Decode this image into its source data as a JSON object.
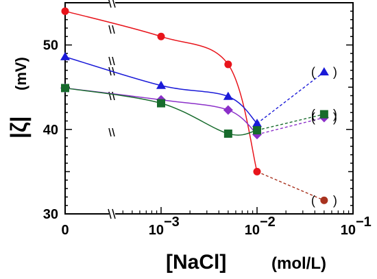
{
  "chart_data": {
    "type": "line",
    "title": "",
    "xlabel": "[NaCl]",
    "xlabel_unit": "(mol/L)",
    "ylabel": "|ζ|",
    "ylabel_unit": "(mV)",
    "x_scale": "log with broken axis (0 plotted left of break)",
    "ylim": [
      30,
      55
    ],
    "y_ticks": [
      30,
      40,
      50
    ],
    "x_tick_labels": [
      {
        "value": 0,
        "label": "0"
      },
      {
        "value": 0.001,
        "label": "10",
        "exp": "−3"
      },
      {
        "value": 0.01,
        "label": "10",
        "exp": "−2"
      },
      {
        "value": 0.1,
        "label": "10",
        "exp": "−1"
      }
    ],
    "grid": false,
    "legend": "none",
    "series": [
      {
        "marker": "circle",
        "color": "#e8141b",
        "x": [
          0,
          0.001,
          0.005,
          0.01
        ],
        "values": [
          54.0,
          51.0,
          47.7,
          35.0
        ],
        "extra_x": [
          0.05
        ],
        "extra_values": [
          31.6
        ],
        "extra_color": "#a8321e",
        "extra_label": "( )"
      },
      {
        "marker": "triangle",
        "color": "#1a1ad8",
        "x": [
          0,
          0.001,
          0.005,
          0.01
        ],
        "values": [
          48.6,
          45.2,
          43.9,
          40.7
        ],
        "extra_x": [
          0.05
        ],
        "extra_values": [
          46.8
        ],
        "extra_color": "#1a1ad8",
        "extra_label": "( )"
      },
      {
        "marker": "diamond",
        "color": "#8b2fc9",
        "x": [
          0,
          0.001,
          0.005,
          0.01
        ],
        "values": [
          44.9,
          43.5,
          42.3,
          39.4
        ],
        "extra_x": [
          0.05
        ],
        "extra_values": [
          41.4
        ],
        "extra_color": "#8b2fc9",
        "extra_label": "( )"
      },
      {
        "marker": "square",
        "color": "#176b2c",
        "x": [
          0,
          0.001,
          0.005,
          0.01
        ],
        "values": [
          44.9,
          43.1,
          39.5,
          39.9
        ],
        "extra_x": [
          0.05
        ],
        "extra_values": [
          41.8
        ],
        "extra_color": "#176b2c",
        "extra_label": "( )"
      }
    ]
  }
}
